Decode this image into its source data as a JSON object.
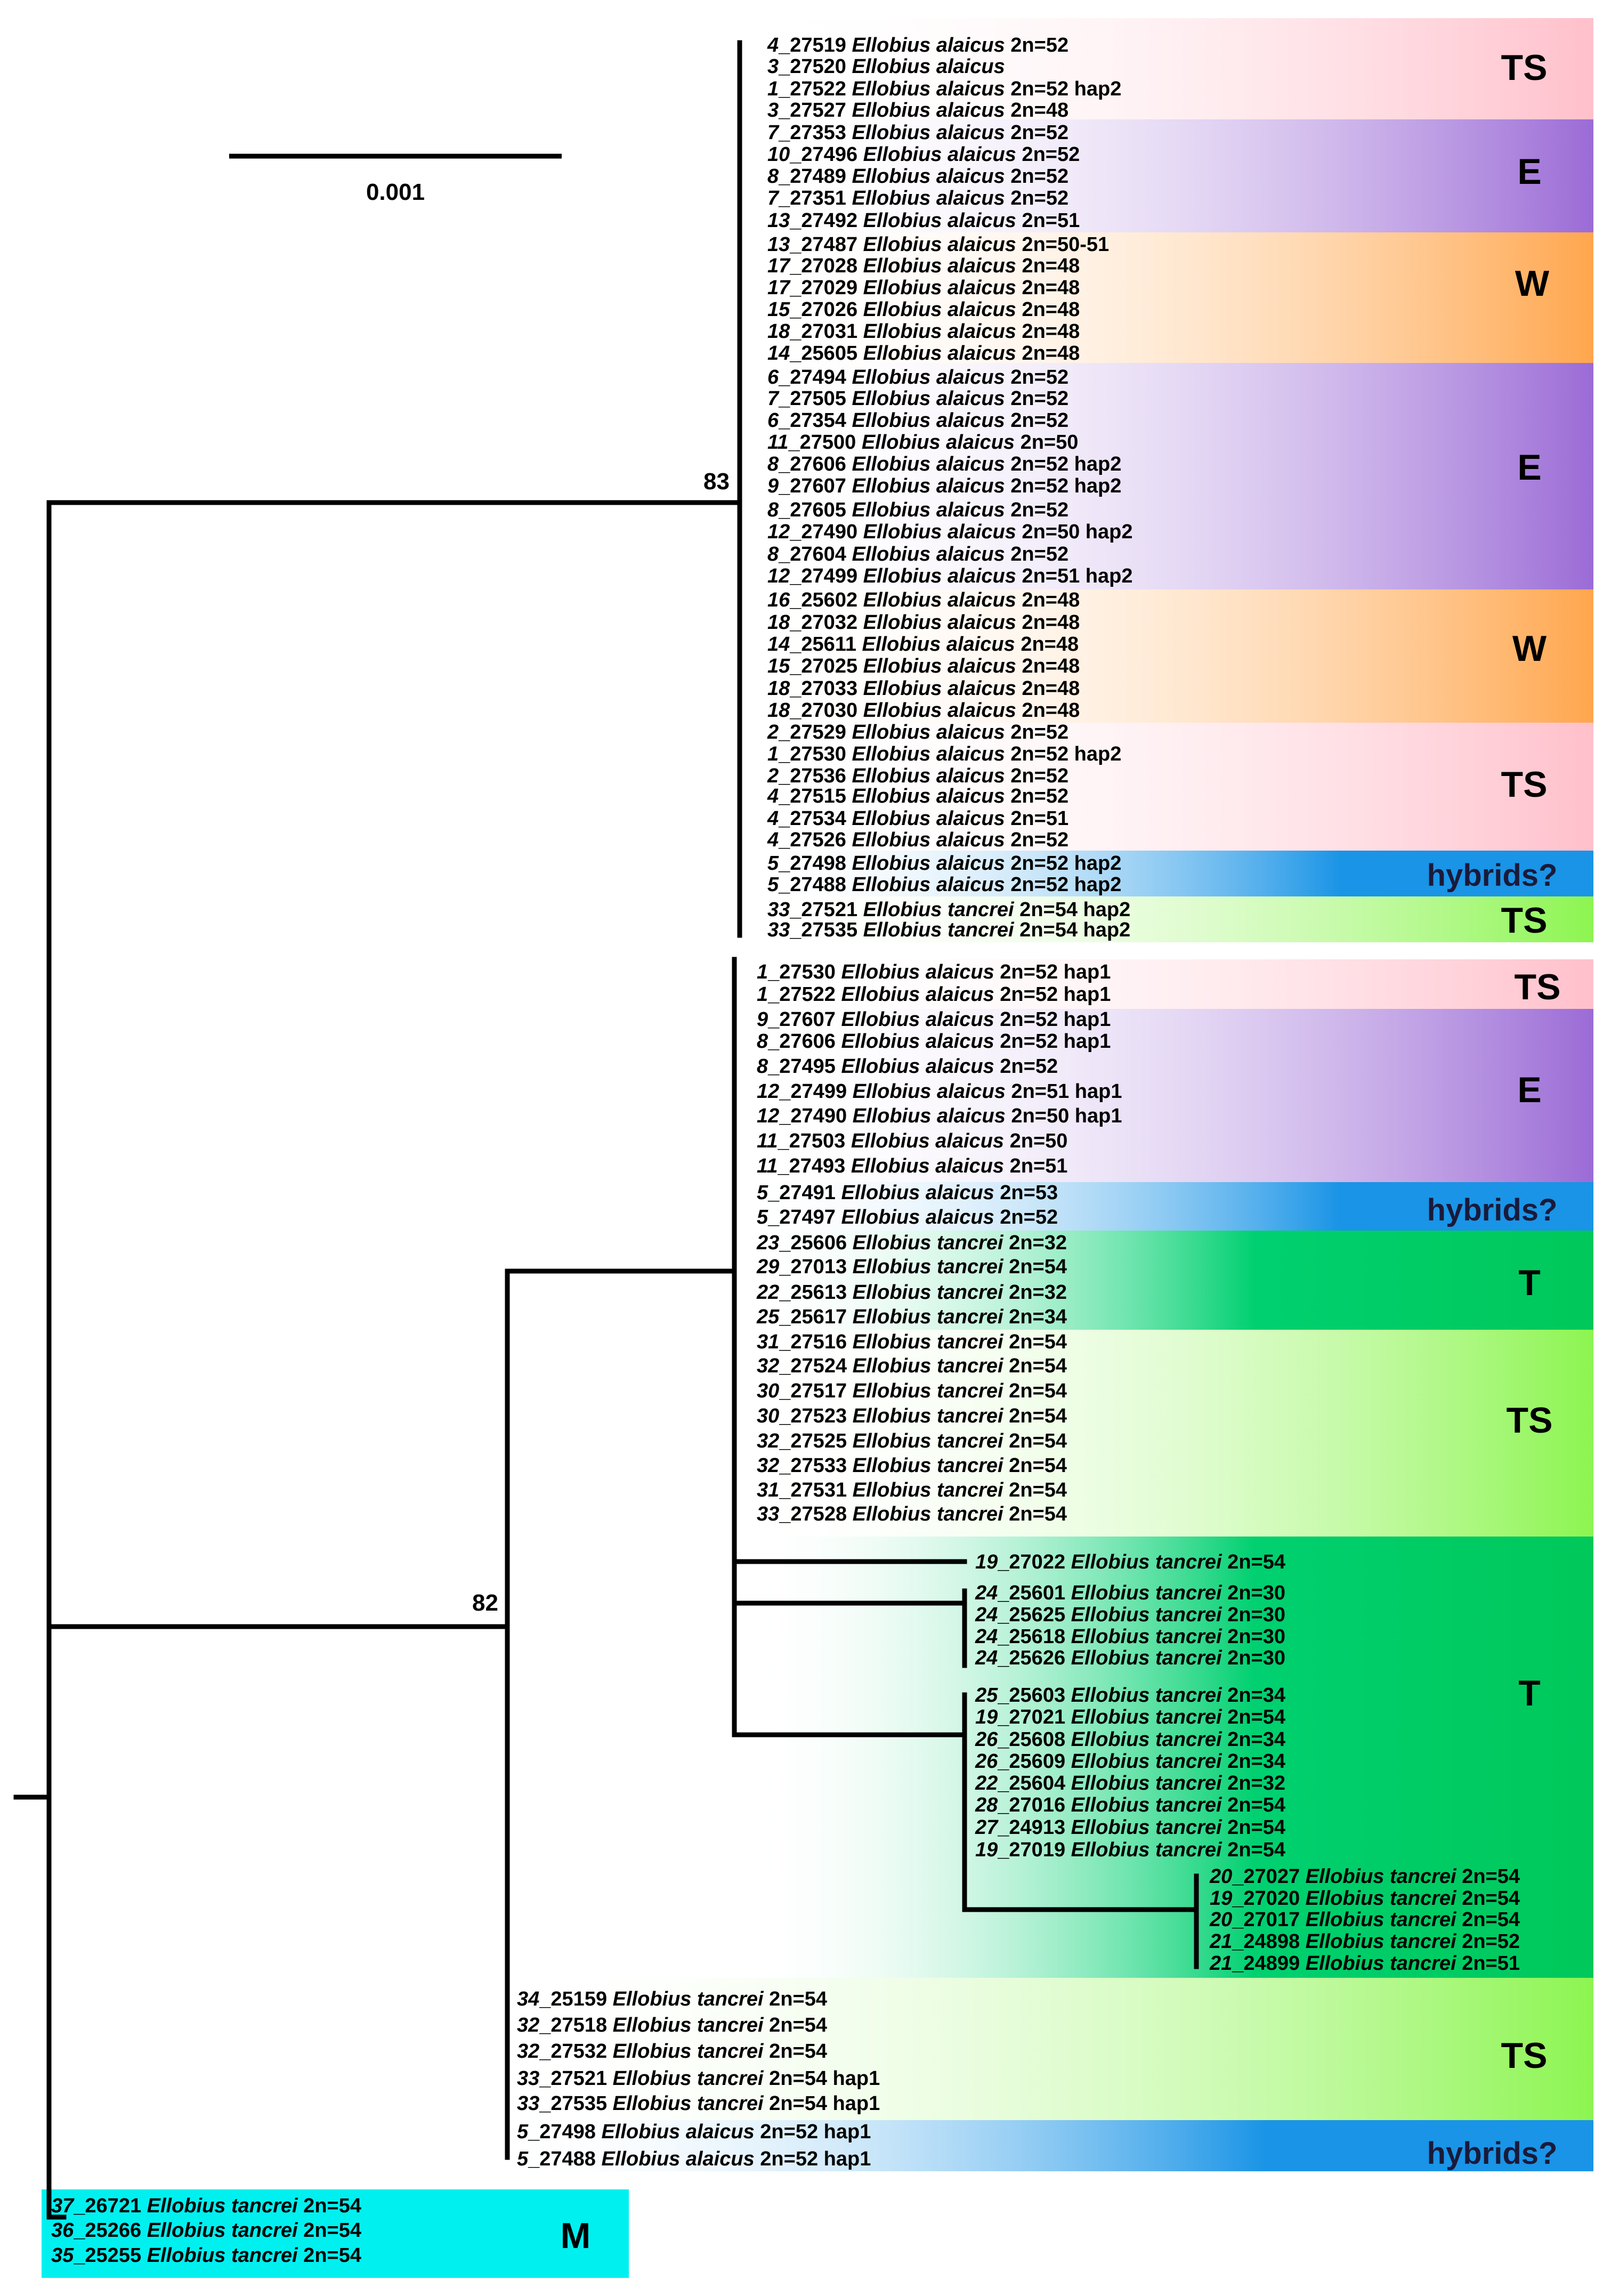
{
  "figure": {
    "type": "phylogenetic-tree",
    "scale_bar_label": "0.001",
    "support_values": [
      "83",
      "82"
    ]
  },
  "colors": {
    "TS": "#ffc0cb",
    "E": "#9b6bd6",
    "W": "#ffa64d",
    "hybrids": "#1a94e6",
    "TS_green": "#8cf550",
    "T": "#00c85a",
    "M": "#00f0f0"
  },
  "tips": [
    {
      "num": "4",
      "id": "_27519 ",
      "sp": "Ellobius alaicus",
      "suffix": " 2n=52"
    },
    {
      "num": "3",
      "id": "_27520 ",
      "sp": "Ellobius alaicus",
      "suffix": ""
    },
    {
      "num": "1",
      "id": "_27522 ",
      "sp": "Ellobius alaicus",
      "suffix": " 2n=52 hap2"
    },
    {
      "num": "3",
      "id": "_27527 ",
      "sp": "Ellobius alaicus",
      "suffix": " 2n=48"
    },
    {
      "num": "7",
      "id": "_27353 ",
      "sp": "Ellobius alaicus",
      "suffix": " 2n=52"
    },
    {
      "num": "10",
      "id": "_27496 ",
      "sp": "Ellobius alaicus",
      "suffix": " 2n=52"
    },
    {
      "num": "8",
      "id": "_27489 ",
      "sp": "Ellobius alaicus",
      "suffix": " 2n=52"
    },
    {
      "num": "7",
      "id": "_27351 ",
      "sp": "Ellobius alaicus",
      "suffix": " 2n=52"
    },
    {
      "num": "13",
      "id": "_27492 ",
      "sp": "Ellobius alaicus",
      "suffix": " 2n=51"
    },
    {
      "num": "13",
      "id": "_27487 ",
      "sp": "Ellobius alaicus",
      "suffix": " 2n=50-51"
    },
    {
      "num": "17",
      "id": "_27028 ",
      "sp": "Ellobius alaicus",
      "suffix": " 2n=48"
    },
    {
      "num": "17",
      "id": "_27029 ",
      "sp": "Ellobius alaicus",
      "suffix": " 2n=48"
    },
    {
      "num": "15",
      "id": "_27026 ",
      "sp": "Ellobius alaicus",
      "suffix": " 2n=48"
    },
    {
      "num": "18",
      "id": "_27031 ",
      "sp": "Ellobius alaicus",
      "suffix": " 2n=48"
    },
    {
      "num": "14",
      "id": "_25605 ",
      "sp": "Ellobius alaicus",
      "suffix": " 2n=48"
    },
    {
      "num": "6",
      "id": "_27494 ",
      "sp": "Ellobius alaicus",
      "suffix": " 2n=52"
    },
    {
      "num": "7",
      "id": "_27505 ",
      "sp": "Ellobius alaicus",
      "suffix": " 2n=52"
    },
    {
      "num": "6",
      "id": "_27354 ",
      "sp": "Ellobius alaicus",
      "suffix": " 2n=52"
    },
    {
      "num": "11",
      "id": "_27500 ",
      "sp": "Ellobius alaicus",
      "suffix": " 2n=50"
    },
    {
      "num": "8",
      "id": "_27606 ",
      "sp": "Ellobius alaicus",
      "suffix": " 2n=52 hap2"
    },
    {
      "num": "9",
      "id": "_27607 ",
      "sp": "Ellobius alaicus",
      "suffix": " 2n=52 hap2"
    },
    {
      "num": "8",
      "id": "_27605 ",
      "sp": "Ellobius alaicus",
      "suffix": " 2n=52"
    },
    {
      "num": "12",
      "id": "_27490 ",
      "sp": "Ellobius alaicus",
      "suffix": " 2n=50 hap2"
    },
    {
      "num": "8",
      "id": "_27604 ",
      "sp": "Ellobius alaicus",
      "suffix": " 2n=52"
    },
    {
      "num": "12",
      "id": "_27499 ",
      "sp": "Ellobius alaicus",
      "suffix": " 2n=51 hap2"
    },
    {
      "num": "16",
      "id": "_25602 ",
      "sp": "Ellobius alaicus",
      "suffix": " 2n=48"
    },
    {
      "num": "18",
      "id": "_27032 ",
      "sp": "Ellobius alaicus",
      "suffix": " 2n=48"
    },
    {
      "num": "14",
      "id": "_25611 ",
      "sp": "Ellobius alaicus",
      "suffix": " 2n=48"
    },
    {
      "num": "15",
      "id": "_27025 ",
      "sp": "Ellobius alaicus",
      "suffix": " 2n=48"
    },
    {
      "num": "18",
      "id": "_27033 ",
      "sp": "Ellobius alaicus",
      "suffix": " 2n=48"
    },
    {
      "num": "18",
      "id": "_27030 ",
      "sp": "Ellobius alaicus",
      "suffix": " 2n=48"
    },
    {
      "num": "2",
      "id": "_27529 ",
      "sp": "Ellobius alaicus",
      "suffix": " 2n=52"
    },
    {
      "num": "1",
      "id": "_27530 ",
      "sp": "Ellobius alaicus",
      "suffix": " 2n=52 hap2"
    },
    {
      "num": "2",
      "id": "_27536 ",
      "sp": "Ellobius alaicus",
      "suffix": " 2n=52"
    },
    {
      "num": "4",
      "id": "_27515 ",
      "sp": "Ellobius alaicus",
      "suffix": " 2n=52"
    },
    {
      "num": "4",
      "id": "_27534 ",
      "sp": "Ellobius alaicus",
      "suffix": " 2n=51"
    },
    {
      "num": "4",
      "id": "_27526 ",
      "sp": "Ellobius alaicus",
      "suffix": " 2n=52"
    },
    {
      "num": "5",
      "id": "_27498 ",
      "sp": "Ellobius alaicus",
      "suffix": " 2n=52 hap2"
    },
    {
      "num": "5",
      "id": "_27488 ",
      "sp": "Ellobius alaicus",
      "suffix": " 2n=52 hap2"
    },
    {
      "num": "33",
      "id": "_27521 ",
      "sp": "Ellobius tancrei",
      "suffix": " 2n=54 hap2"
    },
    {
      "num": "33",
      "id": "_27535 ",
      "sp": "Ellobius tancrei",
      "suffix": " 2n=54 hap2"
    },
    {
      "num": "1",
      "id": "_27530 ",
      "sp": "Ellobius alaicus",
      "suffix": " 2n=52 hap1"
    },
    {
      "num": "1",
      "id": "_27522 ",
      "sp": "Ellobius alaicus",
      "suffix": " 2n=52 hap1"
    },
    {
      "num": "9",
      "id": "_27607 ",
      "sp": "Ellobius alaicus",
      "suffix": " 2n=52 hap1"
    },
    {
      "num": "8",
      "id": "_27606 ",
      "sp": "Ellobius alaicus",
      "suffix": " 2n=52 hap1"
    },
    {
      "num": "8",
      "id": "_27495 ",
      "sp": "Ellobius alaicus",
      "suffix": " 2n=52"
    },
    {
      "num": "12",
      "id": "_27499 ",
      "sp": "Ellobius alaicus",
      "suffix": " 2n=51 hap1"
    },
    {
      "num": "12",
      "id": "_27490 ",
      "sp": "Ellobius alaicus",
      "suffix": " 2n=50 hap1"
    },
    {
      "num": "11",
      "id": "_27503 ",
      "sp": "Ellobius alaicus",
      "suffix": " 2n=50"
    },
    {
      "num": "11",
      "id": "_27493 ",
      "sp": "Ellobius alaicus",
      "suffix": " 2n=51"
    },
    {
      "num": "5",
      "id": "_27491 ",
      "sp": "Ellobius alaicus",
      "suffix": " 2n=53"
    },
    {
      "num": "5",
      "id": "_27497 ",
      "sp": "Ellobius alaicus",
      "suffix": " 2n=52"
    },
    {
      "num": "23",
      "id": "_25606 ",
      "sp": "Ellobius tancrei",
      "suffix": " 2n=32"
    },
    {
      "num": "29",
      "id": "_27013 ",
      "sp": "Ellobius tancrei",
      "suffix": " 2n=54"
    },
    {
      "num": "22",
      "id": "_25613 ",
      "sp": "Ellobius tancrei",
      "suffix": " 2n=32"
    },
    {
      "num": "25",
      "id": "_25617 ",
      "sp": "Ellobius tancrei",
      "suffix": " 2n=34"
    },
    {
      "num": "31",
      "id": "_27516 ",
      "sp": "Ellobius tancrei",
      "suffix": " 2n=54"
    },
    {
      "num": "32",
      "id": "_27524 ",
      "sp": "Ellobius tancrei",
      "suffix": " 2n=54"
    },
    {
      "num": "30",
      "id": "_27517 ",
      "sp": "Ellobius tancrei",
      "suffix": " 2n=54"
    },
    {
      "num": "30",
      "id": "_27523 ",
      "sp": "Ellobius tancrei",
      "suffix": " 2n=54"
    },
    {
      "num": "32",
      "id": "_27525 ",
      "sp": "Ellobius tancrei",
      "suffix": " 2n=54"
    },
    {
      "num": "32",
      "id": "_27533 ",
      "sp": "Ellobius tancrei",
      "suffix": " 2n=54"
    },
    {
      "num": "31",
      "id": "_27531 ",
      "sp": "Ellobius tancrei",
      "suffix": " 2n=54"
    },
    {
      "num": "33",
      "id": "_27528 ",
      "sp": "Ellobius tancrei",
      "suffix": " 2n=54"
    },
    {
      "num": "19",
      "id": "_27022 ",
      "sp": "Ellobius tancrei",
      "suffix": " 2n=54"
    },
    {
      "num": "24",
      "id": "_25601 ",
      "sp": "Ellobius tancrei",
      "suffix": " 2n=30"
    },
    {
      "num": "24",
      "id": "_25625 ",
      "sp": "Ellobius tancrei",
      "suffix": " 2n=30"
    },
    {
      "num": "24",
      "id": "_25618 ",
      "sp": "Ellobius tancrei",
      "suffix": " 2n=30"
    },
    {
      "num": "24",
      "id": "_25626 ",
      "sp": "Ellobius tancrei",
      "suffix": " 2n=30"
    },
    {
      "num": "25",
      "id": "_25603 ",
      "sp": "Ellobius tancrei",
      "suffix": " 2n=34"
    },
    {
      "num": "19",
      "id": "_27021 ",
      "sp": "Ellobius tancrei",
      "suffix": " 2n=54"
    },
    {
      "num": "26",
      "id": "_25608 ",
      "sp": "Ellobius tancrei",
      "suffix": " 2n=34"
    },
    {
      "num": "26",
      "id": "_25609 ",
      "sp": "Ellobius tancrei",
      "suffix": " 2n=34"
    },
    {
      "num": "22",
      "id": "_25604 ",
      "sp": "Ellobius tancrei",
      "suffix": " 2n=32"
    },
    {
      "num": "28",
      "id": "_27016 ",
      "sp": "Ellobius tancrei",
      "suffix": " 2n=54"
    },
    {
      "num": "27",
      "id": "_24913 ",
      "sp": "Ellobius tancrei",
      "suffix": " 2n=54"
    },
    {
      "num": "19",
      "id": "_27019 ",
      "sp": "Ellobius tancrei",
      "suffix": " 2n=54"
    },
    {
      "num": "20",
      "id": "_27027 ",
      "sp": "Ellobius tancrei",
      "suffix": " 2n=54"
    },
    {
      "num": "19",
      "id": "_27020 ",
      "sp": "Ellobius tancrei",
      "suffix": " 2n=54"
    },
    {
      "num": "20",
      "id": "_27017 ",
      "sp": "Ellobius tancrei",
      "suffix": " 2n=54"
    },
    {
      "num": "21",
      "id": "_24898 ",
      "sp": "Ellobius tancrei",
      "suffix": " 2n=52"
    },
    {
      "num": "21",
      "id": "_24899 ",
      "sp": "Ellobius tancrei",
      "suffix": " 2n=51"
    },
    {
      "num": "34",
      "id": "_25159 ",
      "sp": "Ellobius tancrei",
      "suffix": " 2n=54"
    },
    {
      "num": "32",
      "id": "_27518 ",
      "sp": "Ellobius tancrei",
      "suffix": " 2n=54"
    },
    {
      "num": "32",
      "id": "_27532 ",
      "sp": "Ellobius tancrei",
      "suffix": " 2n=54"
    },
    {
      "num": "33",
      "id": "_27521 ",
      "sp": "Ellobius tancrei",
      "suffix": " 2n=54 hap1"
    },
    {
      "num": "33",
      "id": "_27535 ",
      "sp": "Ellobius tancrei",
      "suffix": " 2n=54 hap1"
    },
    {
      "num": "5",
      "id": "_27498 ",
      "sp": "Ellobius alaicus",
      "suffix": " 2n=52 hap1"
    },
    {
      "num": "5",
      "id": "_27488 ",
      "sp": "Ellobius alaicus",
      "suffix": " 2n=52 hap1"
    },
    {
      "num": "37",
      "id": "_26721 ",
      "sp": "Ellobius tancrei",
      "suffix": " 2n=54"
    },
    {
      "num": "36",
      "id": "_25266 ",
      "sp": "Ellobius tancrei",
      "suffix": " 2n=54"
    },
    {
      "num": "35",
      "id": "_25255 ",
      "sp": "Ellobius tancrei",
      "suffix": " 2n=54"
    }
  ],
  "groups": [
    {
      "label": "TS",
      "color_key": "TS"
    },
    {
      "label": "E",
      "color_key": "E"
    },
    {
      "label": "W",
      "color_key": "W"
    },
    {
      "label": "E",
      "color_key": "E"
    },
    {
      "label": "W",
      "color_key": "W"
    },
    {
      "label": "TS",
      "color_key": "TS"
    },
    {
      "label": "hybrids?",
      "color_key": "hybrids"
    },
    {
      "label": "TS",
      "color_key": "TS_green"
    },
    {
      "label": "TS",
      "color_key": "TS"
    },
    {
      "label": "E",
      "color_key": "E"
    },
    {
      "label": "hybrids?",
      "color_key": "hybrids"
    },
    {
      "label": "T",
      "color_key": "T"
    },
    {
      "label": "TS",
      "color_key": "TS_green"
    },
    {
      "label": "T",
      "color_key": "T"
    },
    {
      "label": "TS",
      "color_key": "TS_green"
    },
    {
      "label": "hybrids?",
      "color_key": "hybrids"
    },
    {
      "label": "M",
      "color_key": "M"
    }
  ]
}
